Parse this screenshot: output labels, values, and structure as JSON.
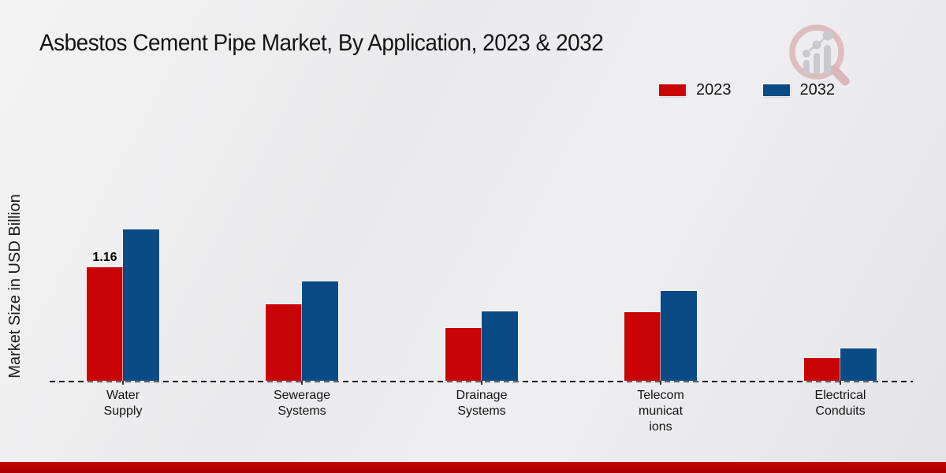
{
  "title": "Asbestos Cement Pipe Market, By Application, 2023 & 2032",
  "chart_data": {
    "type": "bar",
    "title": "Asbestos Cement Pipe Market, By Application, 2023 & 2032",
    "categories": [
      "Water Supply",
      "Sewerage Systems",
      "Drainage Systems",
      "Telecommunications",
      "Electrical Conduits"
    ],
    "category_display": [
      "Water\nSupply",
      "Sewerage\nSystems",
      "Drainage\nSystems",
      "Telecom\nmunicat\nions",
      "Electrical\nConduits"
    ],
    "series": [
      {
        "name": "2023",
        "color": "#c80404",
        "values": [
          1.16,
          0.78,
          0.54,
          0.7,
          0.23
        ]
      },
      {
        "name": "2032",
        "color": "#0a4a85",
        "values": [
          1.55,
          1.02,
          0.71,
          0.92,
          0.33
        ]
      }
    ],
    "xlabel": "",
    "ylabel": "Market Size in USD Billion",
    "ylim": [
      0,
      1.6
    ],
    "grid": false,
    "legend_position": "top-right",
    "annotations": [
      {
        "series": "2023",
        "category": "Water Supply",
        "text": "1.16"
      }
    ]
  },
  "footer_color": "#c10303"
}
